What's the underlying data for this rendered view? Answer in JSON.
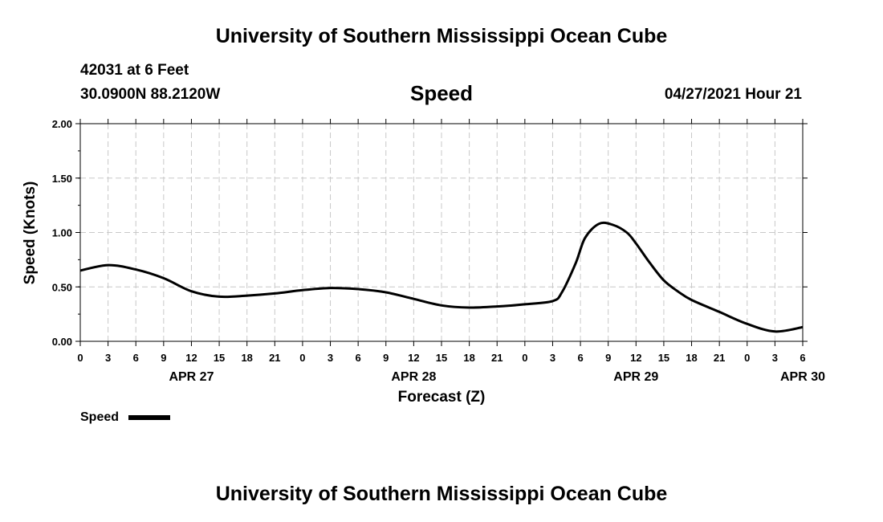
{
  "header": {
    "title": "University of Southern Mississippi Ocean Cube",
    "station": "42031 at 6 Feet",
    "coords": "30.0900N  88.2120W",
    "chart_name": "Speed",
    "datetime": "04/27/2021 Hour 21"
  },
  "footer": {
    "title": "University of Southern Mississippi Ocean Cube"
  },
  "chart_data": {
    "type": "line",
    "title": "Speed",
    "xlabel": "Forecast (Z)",
    "ylabel": "Speed (Knots)",
    "ylim": [
      0,
      2
    ],
    "yticks": [
      "0.00",
      "0.50",
      "1.00",
      "1.50",
      "2.00"
    ],
    "xlim_hours": [
      0,
      78
    ],
    "xtick_labels": [
      "0",
      "3",
      "6",
      "9",
      "12",
      "15",
      "18",
      "21",
      "0",
      "3",
      "6",
      "9",
      "12",
      "15",
      "18",
      "21",
      "0",
      "3",
      "6",
      "9",
      "12",
      "15",
      "18",
      "21",
      "0",
      "3",
      "6"
    ],
    "day_labels": [
      {
        "label": "APR 27",
        "hour": 12
      },
      {
        "label": "APR 28",
        "hour": 36
      },
      {
        "label": "APR 29",
        "hour": 60
      },
      {
        "label": "APR 30",
        "hour": 78
      }
    ],
    "grid": true,
    "legend": "bottom-left",
    "series": [
      {
        "name": "Speed",
        "x": [
          0,
          3,
          6,
          9,
          12,
          15,
          18,
          21,
          24,
          27,
          30,
          33,
          36,
          39,
          42,
          45,
          48,
          51,
          52,
          53.5,
          54.5,
          56,
          57.5,
          59,
          60,
          61.5,
          63,
          64.5,
          66,
          69,
          72,
          75,
          78
        ],
        "y": [
          0.65,
          0.7,
          0.66,
          0.58,
          0.46,
          0.41,
          0.42,
          0.44,
          0.47,
          0.49,
          0.48,
          0.45,
          0.39,
          0.33,
          0.31,
          0.32,
          0.34,
          0.37,
          0.45,
          0.72,
          0.95,
          1.08,
          1.07,
          1.0,
          0.9,
          0.72,
          0.56,
          0.46,
          0.38,
          0.27,
          0.16,
          0.09,
          0.13
        ]
      }
    ]
  }
}
